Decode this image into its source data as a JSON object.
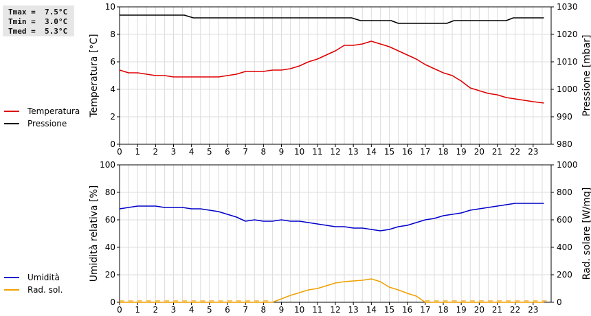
{
  "stats": {
    "tmax": "Tmax =  7.5°C",
    "tmin": "Tmin =  3.0°C",
    "tmed": "Tmed =  5.3°C"
  },
  "legend_top": [
    {
      "label": "Temperatura",
      "color": "#dd0000"
    },
    {
      "label": "Pressione",
      "color": "#000000"
    }
  ],
  "legend_bottom": [
    {
      "label": "Umidità",
      "color": "#0000cc"
    },
    {
      "label": "Rad. sol.",
      "color": "#f0a000"
    }
  ],
  "chart_data": [
    {
      "type": "line",
      "xlabel": "",
      "ylabel": "Temperatura [°C]",
      "y2label": "Pressione [mbar]",
      "xlim": [
        0,
        24
      ],
      "ylim": [
        0,
        10
      ],
      "y2lim": [
        980,
        1030
      ],
      "x_ticks": [
        0,
        1,
        2,
        3,
        4,
        5,
        6,
        7,
        8,
        9,
        10,
        11,
        12,
        13,
        14,
        15,
        16,
        17,
        18,
        19,
        20,
        21,
        22,
        23
      ],
      "y_ticks": [
        0,
        2,
        4,
        6,
        8,
        10
      ],
      "y2_ticks": [
        980,
        990,
        1000,
        1010,
        1020,
        1030
      ],
      "grid": true,
      "series": [
        {
          "name": "Temperatura",
          "color": "#dd0000",
          "axis": "left",
          "x": [
            0,
            0.5,
            1,
            1.5,
            2,
            2.5,
            3,
            3.5,
            4,
            4.5,
            5,
            5.5,
            6,
            6.5,
            7,
            7.5,
            8,
            8.5,
            9,
            9.5,
            10,
            10.5,
            11,
            11.5,
            12,
            12.5,
            13,
            13.5,
            14,
            14.5,
            15,
            15.5,
            16,
            16.5,
            17,
            17.5,
            18,
            18.5,
            19,
            19.5,
            20,
            20.5,
            21,
            21.5,
            22,
            22.5,
            23,
            23.6
          ],
          "y": [
            5.4,
            5.2,
            5.2,
            5.1,
            5.0,
            5.0,
            4.9,
            4.9,
            4.9,
            4.9,
            4.9,
            4.9,
            5.0,
            5.1,
            5.3,
            5.3,
            5.3,
            5.4,
            5.4,
            5.5,
            5.7,
            6.0,
            6.2,
            6.5,
            6.8,
            7.2,
            7.2,
            7.3,
            7.5,
            7.3,
            7.1,
            6.8,
            6.5,
            6.2,
            5.8,
            5.5,
            5.2,
            5.0,
            4.6,
            4.1,
            3.9,
            3.7,
            3.6,
            3.4,
            3.3,
            3.2,
            3.1,
            3.0
          ]
        },
        {
          "name": "Pressione",
          "color": "#000000",
          "axis": "right",
          "x": [
            0,
            3.6,
            4.1,
            12.9,
            13.4,
            15.1,
            15.5,
            18.2,
            18.6,
            21.5,
            21.9,
            23.6
          ],
          "y": [
            1027,
            1027,
            1026,
            1026,
            1025,
            1025,
            1024,
            1024,
            1025,
            1025,
            1026,
            1026
          ]
        }
      ]
    },
    {
      "type": "line",
      "xlabel": "",
      "ylabel": "Umidità relativa [%]",
      "y2label": "Rad. solare [W/mq]",
      "xlim": [
        0,
        24
      ],
      "ylim": [
        0,
        100
      ],
      "y2lim": [
        0,
        1000
      ],
      "x_ticks": [
        0,
        1,
        2,
        3,
        4,
        5,
        6,
        7,
        8,
        9,
        10,
        11,
        12,
        13,
        14,
        15,
        16,
        17,
        18,
        19,
        20,
        21,
        22,
        23
      ],
      "y_ticks": [
        0,
        20,
        40,
        60,
        80,
        100
      ],
      "y2_ticks": [
        0,
        200,
        400,
        600,
        800,
        1000
      ],
      "grid": true,
      "series": [
        {
          "name": "Umidità",
          "color": "#0000cc",
          "axis": "left",
          "x": [
            0,
            0.5,
            1,
            1.5,
            2,
            2.5,
            3,
            3.5,
            4,
            4.5,
            5,
            5.5,
            6,
            6.5,
            7,
            7.5,
            8,
            8.5,
            9,
            9.5,
            10,
            10.5,
            11,
            11.5,
            12,
            12.5,
            13,
            13.5,
            14,
            14.5,
            15,
            15.5,
            16,
            16.5,
            17,
            17.5,
            18,
            18.5,
            19,
            19.5,
            20,
            20.5,
            21,
            21.5,
            22,
            22.5,
            23,
            23.6
          ],
          "y": [
            68,
            69,
            70,
            70,
            70,
            69,
            69,
            69,
            68,
            68,
            67,
            66,
            64,
            62,
            59,
            60,
            59,
            59,
            60,
            59,
            59,
            58,
            57,
            56,
            55,
            55,
            54,
            54,
            53,
            52,
            53,
            55,
            56,
            58,
            60,
            61,
            63,
            64,
            65,
            67,
            68,
            69,
            70,
            71,
            72,
            72,
            72,
            72
          ]
        },
        {
          "name": "Rad. sol.",
          "color": "#f0a000",
          "axis": "right",
          "x": [
            0,
            8.5,
            9,
            9.5,
            10,
            10.5,
            11,
            11.5,
            12,
            12.5,
            13,
            13.5,
            14,
            14.5,
            15,
            15.5,
            16,
            16.5,
            17,
            17.5,
            23.6
          ],
          "y": [
            0,
            0,
            25,
            50,
            70,
            90,
            100,
            120,
            140,
            150,
            155,
            160,
            170,
            150,
            110,
            90,
            65,
            45,
            0,
            0,
            0
          ]
        }
      ]
    }
  ]
}
